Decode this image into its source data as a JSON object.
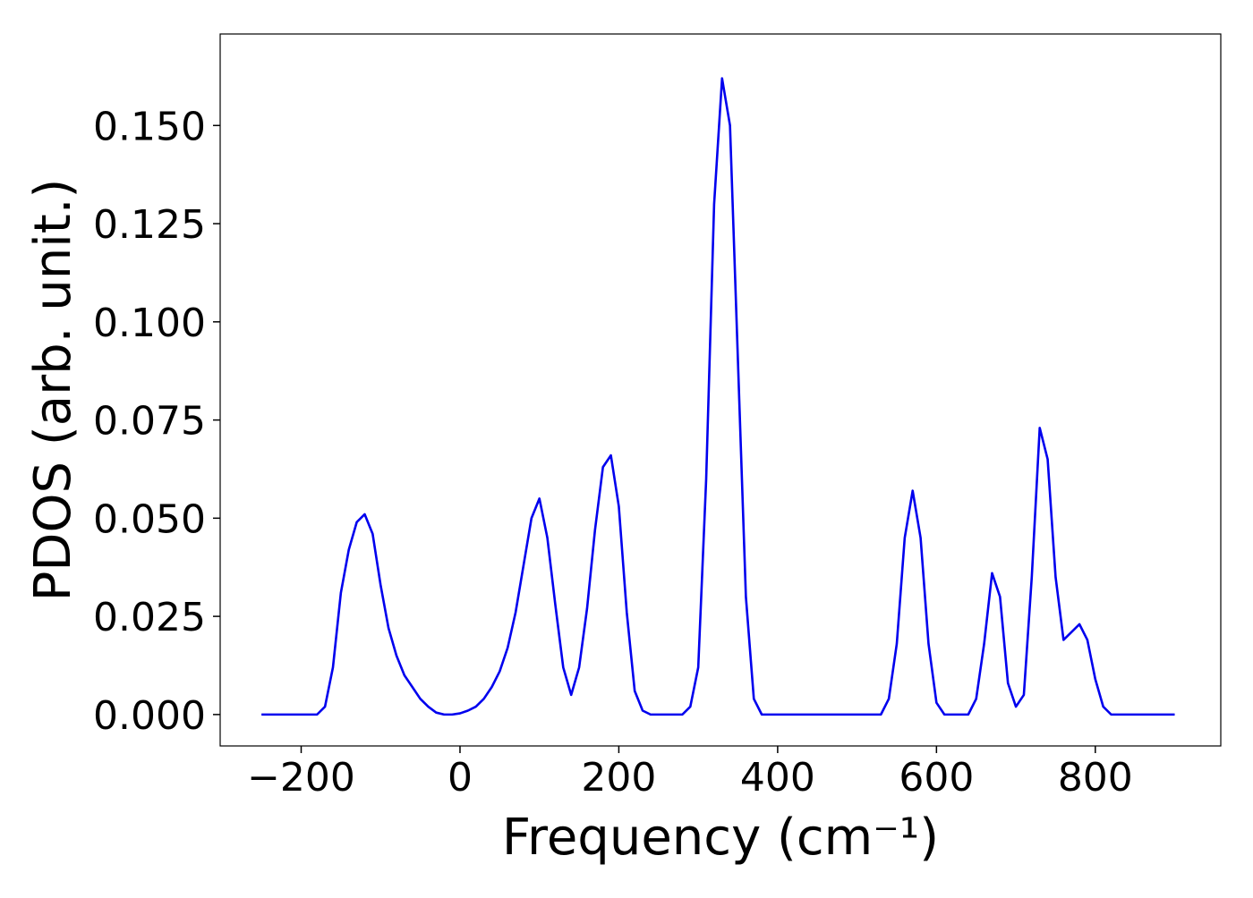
{
  "chart_data": {
    "type": "line",
    "xlabel": "Frequency (cm⁻¹)",
    "ylabel": "PDOS (arb. unit.)",
    "x": [
      -250,
      -240,
      -230,
      -220,
      -210,
      -200,
      -190,
      -180,
      -170,
      -160,
      -150,
      -140,
      -130,
      -120,
      -110,
      -100,
      -90,
      -80,
      -70,
      -60,
      -50,
      -40,
      -30,
      -20,
      -10,
      0,
      10,
      20,
      30,
      40,
      50,
      60,
      70,
      80,
      90,
      100,
      110,
      120,
      130,
      140,
      150,
      160,
      170,
      180,
      190,
      200,
      210,
      220,
      230,
      240,
      250,
      260,
      270,
      280,
      290,
      300,
      310,
      320,
      330,
      340,
      350,
      360,
      370,
      380,
      390,
      400,
      410,
      420,
      430,
      440,
      450,
      460,
      470,
      480,
      490,
      500,
      510,
      520,
      530,
      540,
      550,
      560,
      570,
      580,
      590,
      600,
      610,
      620,
      630,
      640,
      650,
      660,
      670,
      680,
      690,
      700,
      710,
      720,
      730,
      740,
      750,
      760,
      770,
      780,
      790,
      800,
      810,
      820,
      830,
      840,
      850,
      860,
      870,
      880,
      890,
      900
    ],
    "series": [
      {
        "name": "PDOS",
        "color": "#0000ee",
        "values": [
          0,
          0,
          0,
          0,
          0,
          0,
          0,
          0,
          0.002,
          0.012,
          0.031,
          0.042,
          0.049,
          0.051,
          0.046,
          0.033,
          0.022,
          0.015,
          0.01,
          0.007,
          0.004,
          0.002,
          0.0005,
          0,
          0,
          0.0003,
          0.001,
          0.002,
          0.004,
          0.007,
          0.011,
          0.017,
          0.026,
          0.038,
          0.05,
          0.055,
          0.045,
          0.028,
          0.012,
          0.005,
          0.012,
          0.027,
          0.047,
          0.063,
          0.066,
          0.053,
          0.026,
          0.006,
          0.001,
          0,
          0,
          0,
          0,
          0,
          0.002,
          0.012,
          0.06,
          0.13,
          0.162,
          0.15,
          0.09,
          0.03,
          0.004,
          0,
          0,
          0,
          0,
          0,
          0,
          0,
          0,
          0,
          0,
          0,
          0,
          0,
          0,
          0,
          0,
          0.004,
          0.018,
          0.045,
          0.057,
          0.045,
          0.018,
          0.003,
          0,
          0,
          0,
          0,
          0.004,
          0.018,
          0.036,
          0.03,
          0.008,
          0.002,
          0.005,
          0.035,
          0.073,
          0.065,
          0.035,
          0.019,
          0.021,
          0.023,
          0.019,
          0.009,
          0.002,
          0,
          0,
          0,
          0,
          0,
          0,
          0,
          0,
          0
        ]
      }
    ],
    "xlim": [
      -302,
      958
    ],
    "ylim": [
      -0.008,
      0.1733
    ],
    "xticks": [
      {
        "value": -200,
        "label": "−200"
      },
      0,
      200,
      400,
      600,
      800
    ],
    "yticks": [
      {
        "value": 0,
        "label": "0.000"
      },
      {
        "value": 0.025,
        "label": "0.025"
      },
      {
        "value": 0.05,
        "label": "0.050"
      },
      {
        "value": 0.075,
        "label": "0.075"
      },
      {
        "value": 0.1,
        "label": "0.100"
      },
      {
        "value": 0.125,
        "label": "0.125"
      },
      {
        "value": 0.15,
        "label": "0.150"
      }
    ],
    "grid": false
  }
}
